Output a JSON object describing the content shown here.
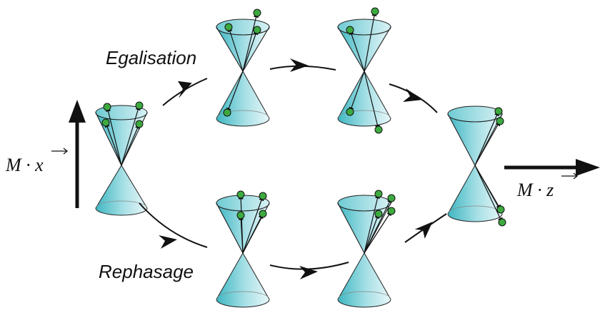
{
  "labels": {
    "top": "Egalisation",
    "bottom": "Rephasage",
    "left": "M · x",
    "right": "M · z"
  }
}
